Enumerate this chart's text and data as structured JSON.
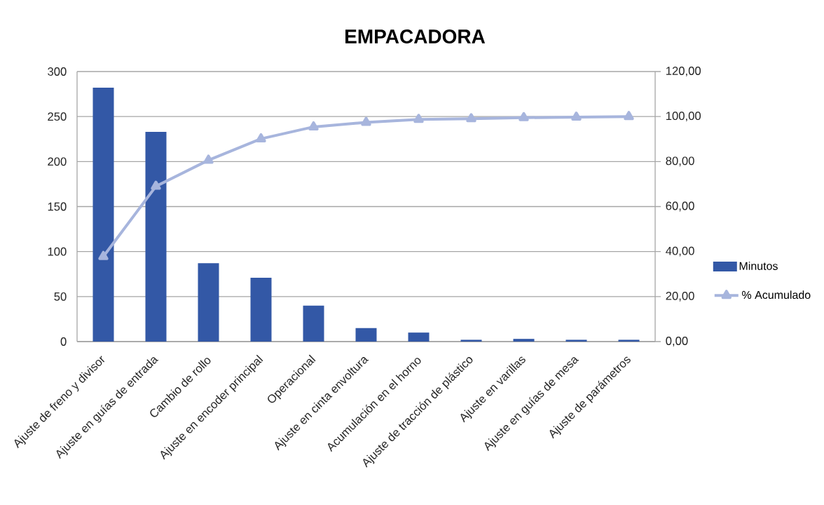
{
  "chart_data": {
    "type": "bar",
    "title": "EMPACADORA",
    "categories": [
      "Ajuste de freno y divisor",
      "Ajuste en guías de entrada",
      "Cambio de rollo",
      "Ajuste en encoder principal",
      "Operacional",
      "Ajuste en cinta envoltura",
      "Acumulación en el horno",
      "Ajuste de tracción de plástico",
      "Ajuste en varillas",
      "Ajuste en guías de mesa",
      "Ajuste de parámetros"
    ],
    "series": [
      {
        "name": "Minutos",
        "color": "#3358a6",
        "values": [
          282,
          233,
          87,
          71,
          40,
          15,
          10,
          2,
          3,
          2,
          2
        ]
      },
      {
        "name": "% Acumulado",
        "type": "line",
        "axis": "y2",
        "color": "#a7b5dd",
        "values": [
          37.8,
          69.0,
          80.6,
          90.1,
          95.4,
          97.4,
          98.7,
          99.0,
          99.5,
          99.7,
          100
        ]
      }
    ],
    "ylim": [
      0,
      300
    ],
    "yticks": [
      0,
      50,
      100,
      150,
      200,
      250,
      300
    ],
    "y2lim": [
      0,
      120
    ],
    "y2ticks": [
      {
        "value": 0,
        "label": "0,00"
      },
      {
        "value": 20,
        "label": "20,00"
      },
      {
        "value": 40,
        "label": "40,00"
      },
      {
        "value": 60,
        "label": "60,00"
      },
      {
        "value": 80,
        "label": "80,00"
      },
      {
        "value": 100,
        "label": "100,00"
      },
      {
        "value": 120,
        "label": "120,00"
      }
    ],
    "grid": "y",
    "legend": "right",
    "marker": "triangle"
  }
}
